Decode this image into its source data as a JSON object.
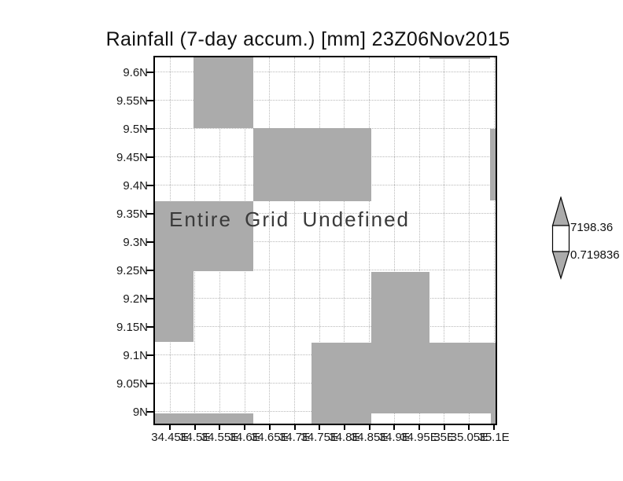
{
  "title": "Rainfall (7-day accum.) [mm] 23Z06Nov2015",
  "plot": {
    "no_data_text": "Entire Grid Undefined"
  },
  "colorbar": {
    "max_label": "7198.36",
    "min_label": "0.719836",
    "box_fill": "#ffffff",
    "outline": "#000000"
  },
  "colors": {
    "undef_gray": "#ababab",
    "grid_line": "#b9b9b9",
    "border": "#000000",
    "axis_text": "#1a1a1a"
  },
  "chart_data": {
    "type": "heatmap",
    "title": "Rainfall (7-day accum.) [mm] 23Z06Nov2015",
    "annotation": "Entire Grid Undefined",
    "grid": "dotted",
    "legend_position": "right-colorbar",
    "colorbar": {
      "max": 7198.36,
      "min": 0.719836
    },
    "x_axis": {
      "range": [
        34.42,
        35.103
      ],
      "tick_values": [
        34.45,
        34.5,
        34.55,
        34.6,
        34.65,
        34.7,
        34.75,
        34.8,
        34.85,
        34.9,
        34.95,
        35.0,
        35.05,
        35.1
      ],
      "tick_labels": [
        "34.45E",
        "34.5E",
        "34.55E",
        "34.6E",
        "34.65E",
        "34.7E",
        "34.75E",
        "34.8E",
        "34.85E",
        "34.9E",
        "34.95E",
        "35E",
        "35.05E",
        "35.1E"
      ]
    },
    "y_axis": {
      "range": [
        8.979,
        9.626
      ],
      "tick_values": [
        9.6,
        9.55,
        9.5,
        9.45,
        9.4,
        9.35,
        9.3,
        9.25,
        9.2,
        9.15,
        9.1,
        9.05,
        9.0
      ],
      "tick_labels": [
        "9.6N",
        "9.55N",
        "9.5N",
        "9.45N",
        "9.4N",
        "9.35N",
        "9.3N",
        "9.25N",
        "9.2N",
        "9.15N",
        "9.1N",
        "9.05N",
        "9N"
      ]
    },
    "undefined_regions_lonlat": [
      [
        34.498,
        9.501,
        34.617,
        9.626
      ],
      [
        34.971,
        9.623,
        35.092,
        9.626
      ],
      [
        34.617,
        9.372,
        34.853,
        9.501
      ],
      [
        35.092,
        9.373,
        35.103,
        9.5
      ],
      [
        34.42,
        9.249,
        34.617,
        9.372
      ],
      [
        34.42,
        9.124,
        34.497,
        9.249
      ],
      [
        34.853,
        9.122,
        34.971,
        9.247
      ],
      [
        34.734,
        8.997,
        35.103,
        9.122
      ],
      [
        34.734,
        8.979,
        34.853,
        8.997
      ],
      [
        34.42,
        8.979,
        34.617,
        8.997
      ],
      [
        35.093,
        8.979,
        35.103,
        8.997
      ]
    ]
  }
}
